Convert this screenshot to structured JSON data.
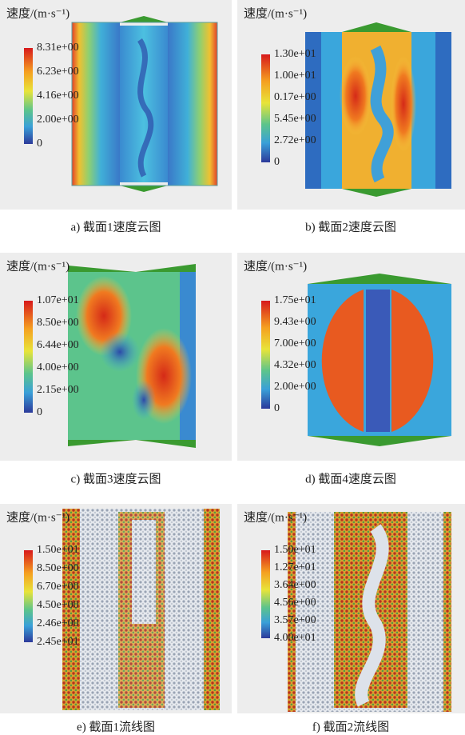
{
  "panels": [
    {
      "title": "速度/(m·s⁻¹)",
      "legend": [
        "8.31e+00",
        "6.23e+00",
        "4.16e+00",
        "2.00e+00",
        "0"
      ],
      "caption": "a) 截面1速度云图"
    },
    {
      "title": "速度/(m·s⁻¹)",
      "legend": [
        "1.30e+01",
        "1.00e+01",
        "0.17e+00",
        "5.45e+00",
        "2.72e+00",
        "0"
      ],
      "caption": "b) 截面2速度云图"
    },
    {
      "title": "速度/(m·s⁻¹)",
      "legend": [
        "1.07e+01",
        "8.50e+00",
        "6.44e+00",
        "4.00e+00",
        "2.15e+00",
        "0"
      ],
      "caption": "c) 截面3速度云图"
    },
    {
      "title": "速度/(m·s⁻¹)",
      "legend": [
        "1.75e+01",
        "9.43e+00",
        "7.00e+00",
        "4.32e+00",
        "2.00e+00",
        "0"
      ],
      "caption": "d) 截面4速度云图"
    },
    {
      "title": "速度/(m·s⁻¹)",
      "legend": [
        "1.50e+01",
        "8.50e+00",
        "6.70e+00",
        "4.50e+00",
        "2.46e+00",
        "2.45e+01"
      ],
      "caption": "e) 截面1流线图"
    },
    {
      "title": "速度/(m·s⁻¹)",
      "legend": [
        "1.50e+01",
        "1.27e+01",
        "3.64e+00",
        "4.56e+00",
        "3.57e+00",
        "4.00e+01"
      ],
      "caption": "f) 截面2流线图"
    }
  ]
}
